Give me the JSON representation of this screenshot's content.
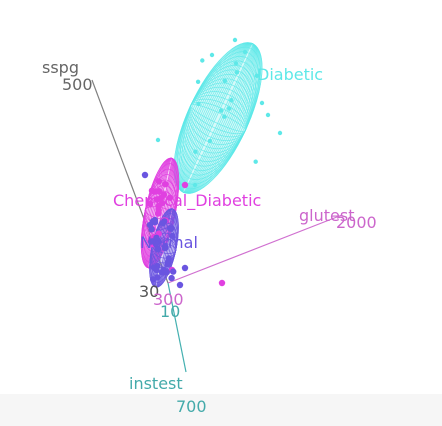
{
  "chart_data": {
    "type": "scatter",
    "title": "",
    "axes": [
      {
        "name": "sspg",
        "tick_label": "500",
        "color": "#666666"
      },
      {
        "name": "glutest",
        "tick_label": "2000",
        "color": "#cc66cc"
      },
      {
        "name": "instest",
        "tick_label": "700",
        "color": "#44aaaa"
      }
    ],
    "origin_tick_labels": [
      {
        "text": "30",
        "color": "#555555"
      },
      {
        "text": "300",
        "color": "#cc66cc"
      },
      {
        "text": "10",
        "color": "#44aaaa"
      }
    ],
    "series": [
      {
        "name": "Diabetic",
        "color": "#5ee8e8"
      },
      {
        "name": "Chemical_Diabetic",
        "color": "#e040e0"
      },
      {
        "name": "Normal",
        "color": "#6a55e0"
      }
    ]
  }
}
